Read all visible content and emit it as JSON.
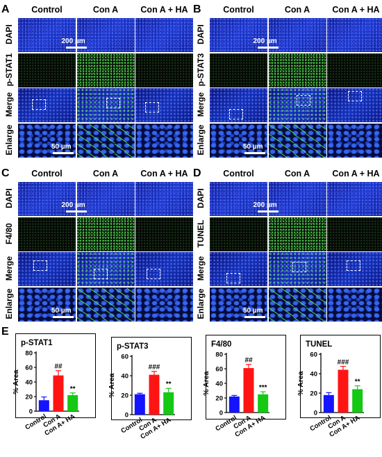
{
  "figure": {
    "panel_letters": [
      "A",
      "B",
      "C",
      "D",
      "E"
    ],
    "column_labels": [
      "Control",
      "Con A",
      "Con A + HA"
    ],
    "panels": [
      {
        "letter": "A",
        "marker": "p-STAT1",
        "rows": [
          "DAPI",
          "p-STAT1",
          "Merge",
          "Enlarge"
        ]
      },
      {
        "letter": "B",
        "marker": "p-STAT3",
        "rows": [
          "DAPI",
          "p-STAT3",
          "Merge",
          "Enlarge"
        ]
      },
      {
        "letter": "C",
        "marker": "F4/80",
        "rows": [
          "DAPI",
          "F4/80",
          "Merge",
          "Enlarge"
        ]
      },
      {
        "letter": "D",
        "marker": "TUNEL",
        "rows": [
          "DAPI",
          "TUNEL",
          "Merge",
          "Enlarge"
        ]
      }
    ],
    "scale_bar_large": "200 µm",
    "scale_bar_small": "50 µm"
  },
  "colors": {
    "control": "#1414ff",
    "cona": "#ff1414",
    "conaha": "#14c814"
  },
  "chart_data": [
    {
      "type": "bar",
      "title": "p-STAT1",
      "ylabel": "% Area",
      "ylim": [
        0,
        80
      ],
      "yticks": [
        0,
        20,
        40,
        60,
        80
      ],
      "categories": [
        "Control",
        "Con A",
        "Con A+ HA"
      ],
      "values": [
        15,
        49,
        22
      ],
      "errors": [
        4.5,
        6.5,
        3
      ],
      "annotations": [
        "",
        "##",
        "**"
      ]
    },
    {
      "type": "bar",
      "title": "p-STAT3",
      "ylabel": "% Area",
      "ylim": [
        0,
        60
      ],
      "yticks": [
        0,
        20,
        40,
        60
      ],
      "categories": [
        "Control",
        "Con A",
        "Con A+ HA"
      ],
      "values": [
        21,
        41,
        23
      ],
      "errors": [
        1,
        3.5,
        4
      ],
      "annotations": [
        "",
        "###",
        "**"
      ]
    },
    {
      "type": "bar",
      "title": "F4/80",
      "ylabel": "% Area",
      "ylim": [
        0,
        80
      ],
      "yticks": [
        0,
        20,
        40,
        60,
        80
      ],
      "categories": [
        "Control",
        "Con A",
        "Con A+ HA"
      ],
      "values": [
        22,
        61,
        25
      ],
      "errors": [
        1.5,
        5,
        3.5
      ],
      "annotations": [
        "",
        "##",
        "***"
      ]
    },
    {
      "type": "bar",
      "title": "TUNEL",
      "ylabel": "% Area",
      "ylim": [
        0,
        60
      ],
      "yticks": [
        0,
        20,
        40,
        60
      ],
      "categories": [
        "Control",
        "Con A",
        "Con A+ HA"
      ],
      "values": [
        18,
        44,
        24
      ],
      "errors": [
        2.5,
        3.5,
        3.5
      ],
      "annotations": [
        "",
        "###",
        "**"
      ]
    }
  ]
}
